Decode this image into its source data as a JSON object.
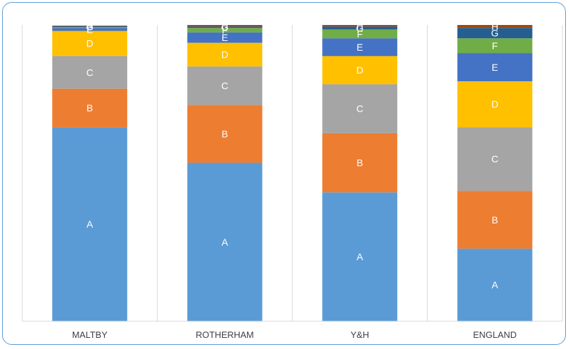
{
  "chart_data": {
    "type": "bar",
    "stacked": true,
    "percent": true,
    "categories": [
      "MALTBY",
      "ROTHERHAM",
      "Y&H",
      "ENGLAND"
    ],
    "ylim": [
      0,
      100
    ],
    "grid": true,
    "legend": "none",
    "series": [
      {
        "name": "A",
        "color": "#5b9bd5",
        "values": [
          65.5,
          53.5,
          43.5,
          24.5
        ]
      },
      {
        "name": "B",
        "color": "#ed7d31",
        "values": [
          13.0,
          19.5,
          20.0,
          19.5
        ]
      },
      {
        "name": "C",
        "color": "#a5a5a5",
        "values": [
          11.0,
          13.0,
          16.5,
          21.5
        ]
      },
      {
        "name": "D",
        "color": "#ffc000",
        "values": [
          8.5,
          8.0,
          9.5,
          15.5
        ]
      },
      {
        "name": "E",
        "color": "#4472c4",
        "values": [
          1.0,
          3.5,
          6.0,
          9.5
        ]
      },
      {
        "name": "F",
        "color": "#70ad47",
        "values": [
          0.3,
          1.5,
          3.0,
          5.0
        ]
      },
      {
        "name": "G",
        "color": "#255e91",
        "values": [
          0.3,
          0.5,
          1.0,
          3.5
        ]
      },
      {
        "name": "H",
        "color": "#9e480e",
        "values": [
          0.2,
          0.5,
          0.5,
          1.0
        ]
      }
    ]
  }
}
